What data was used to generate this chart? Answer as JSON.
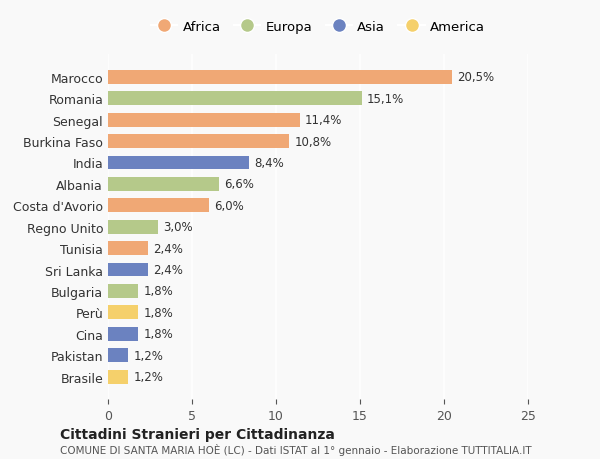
{
  "countries": [
    "Marocco",
    "Romania",
    "Senegal",
    "Burkina Faso",
    "India",
    "Albania",
    "Costa d'Avorio",
    "Regno Unito",
    "Tunisia",
    "Sri Lanka",
    "Bulgaria",
    "Perù",
    "Cina",
    "Pakistan",
    "Brasile"
  ],
  "values": [
    20.5,
    15.1,
    11.4,
    10.8,
    8.4,
    6.6,
    6.0,
    3.0,
    2.4,
    2.4,
    1.8,
    1.8,
    1.8,
    1.2,
    1.2
  ],
  "labels": [
    "20,5%",
    "15,1%",
    "11,4%",
    "10,8%",
    "8,4%",
    "6,6%",
    "6,0%",
    "3,0%",
    "2,4%",
    "2,4%",
    "1,8%",
    "1,8%",
    "1,8%",
    "1,2%",
    "1,2%"
  ],
  "colors": [
    "#F0A875",
    "#B5C98A",
    "#F0A875",
    "#F0A875",
    "#6B82C0",
    "#B5C98A",
    "#F0A875",
    "#B5C98A",
    "#F0A875",
    "#6B82C0",
    "#B5C98A",
    "#F5D06B",
    "#6B82C0",
    "#6B82C0",
    "#F5D06B"
  ],
  "legend_labels": [
    "Africa",
    "Europa",
    "Asia",
    "America"
  ],
  "legend_colors": [
    "#F0A875",
    "#B5C98A",
    "#6B82C0",
    "#F5D06B"
  ],
  "title": "Cittadini Stranieri per Cittadinanza",
  "subtitle": "COMUNE DI SANTA MARIA HOÈ (LC) - Dati ISTAT al 1° gennaio - Elaborazione TUTTITALIA.IT",
  "xlim": [
    0,
    25
  ],
  "xticks": [
    0,
    5,
    10,
    15,
    20,
    25
  ],
  "background_color": "#f9f9f9",
  "bar_height": 0.65
}
